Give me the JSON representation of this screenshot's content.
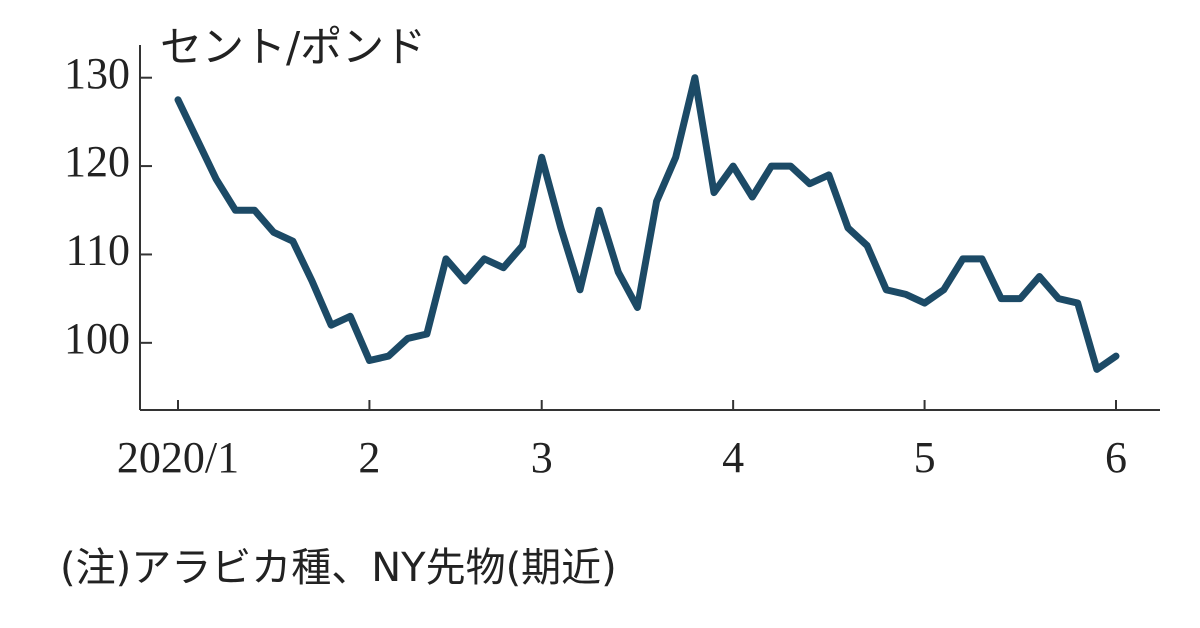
{
  "chart_data": {
    "type": "line",
    "y_label": "セント/ポンド",
    "note": "(注)アラビカ種、NY先物(期近)",
    "categories": [
      "2020/1",
      null,
      null,
      null,
      null,
      null,
      null,
      null,
      null,
      null,
      "2",
      null,
      null,
      null,
      null,
      null,
      null,
      null,
      null,
      "3",
      null,
      null,
      null,
      null,
      null,
      null,
      null,
      null,
      null,
      "4",
      null,
      null,
      null,
      null,
      null,
      null,
      null,
      null,
      null,
      "5",
      null,
      null,
      null,
      null,
      null,
      null,
      null,
      null,
      null,
      "6"
    ],
    "series": [
      {
        "name": "アラビカ種",
        "color": "#1c4a66",
        "values": [
          127.5,
          123,
          118.5,
          115,
          115,
          112.5,
          111.5,
          107,
          102,
          103,
          98,
          98.5,
          100.5,
          101,
          109.5,
          107,
          109.5,
          108.5,
          111,
          121,
          113,
          106,
          115,
          108,
          104,
          116,
          121,
          130,
          117,
          120,
          116.5,
          120,
          120,
          118,
          119,
          113,
          111,
          106,
          105.5,
          104.5,
          106,
          109.5,
          109.5,
          105,
          105,
          107.5,
          105,
          104.5,
          97,
          98.5
        ]
      }
    ],
    "ylim": [
      92.4,
      133.7
    ],
    "yticks": [
      100,
      110,
      120,
      130
    ]
  }
}
